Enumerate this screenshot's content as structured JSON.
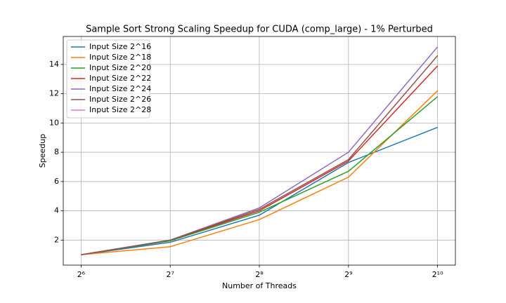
{
  "chart_data": {
    "type": "line",
    "title": "Sample Sort Strong Scaling Speedup for CUDA (comp_large) - 1% Perturbed",
    "x_label": "Number of Threads",
    "y_label": "Speedup",
    "x": [
      64,
      128,
      256,
      512,
      1024
    ],
    "xscale": "log2",
    "xlim": [
      55.7,
      1176.6
    ],
    "xticks": [
      {
        "value": 64,
        "label": "2⁶"
      },
      {
        "value": 128,
        "label": "2⁷"
      },
      {
        "value": 256,
        "label": "2⁸"
      },
      {
        "value": 512,
        "label": "2⁹"
      },
      {
        "value": 1024,
        "label": "2¹⁰"
      }
    ],
    "ylim": [
      0.29,
      15.91
    ],
    "yticks": [
      2,
      4,
      6,
      8,
      10,
      12,
      14
    ],
    "grid": true,
    "legend": "upper-left",
    "series": [
      {
        "name": "Input Size 2^16",
        "color": "#1f77b4",
        "values": [
          1,
          1.85,
          3.7,
          7.3,
          9.7
        ]
      },
      {
        "name": "Input Size 2^18",
        "color": "#ff7f0e",
        "values": [
          1,
          1.55,
          3.4,
          6.3,
          12.2
        ]
      },
      {
        "name": "Input Size 2^20",
        "color": "#2ca02c",
        "values": [
          1,
          1.95,
          3.9,
          6.7,
          11.8
        ]
      },
      {
        "name": "Input Size 2^22",
        "color": "#d62728",
        "values": [
          1,
          2.0,
          4.0,
          7.4,
          13.9
        ]
      },
      {
        "name": "Input Size 2^24",
        "color": "#9467bd",
        "values": [
          1,
          2.0,
          4.2,
          8.0,
          15.2
        ]
      },
      {
        "name": "Input Size 2^26",
        "color": "#8c564b",
        "values": [
          1,
          2.0,
          4.1,
          7.5,
          14.6
        ]
      },
      {
        "name": "Input Size 2^28",
        "color": "#e377c2",
        "values": [
          null,
          null,
          null,
          null,
          null
        ]
      }
    ]
  }
}
